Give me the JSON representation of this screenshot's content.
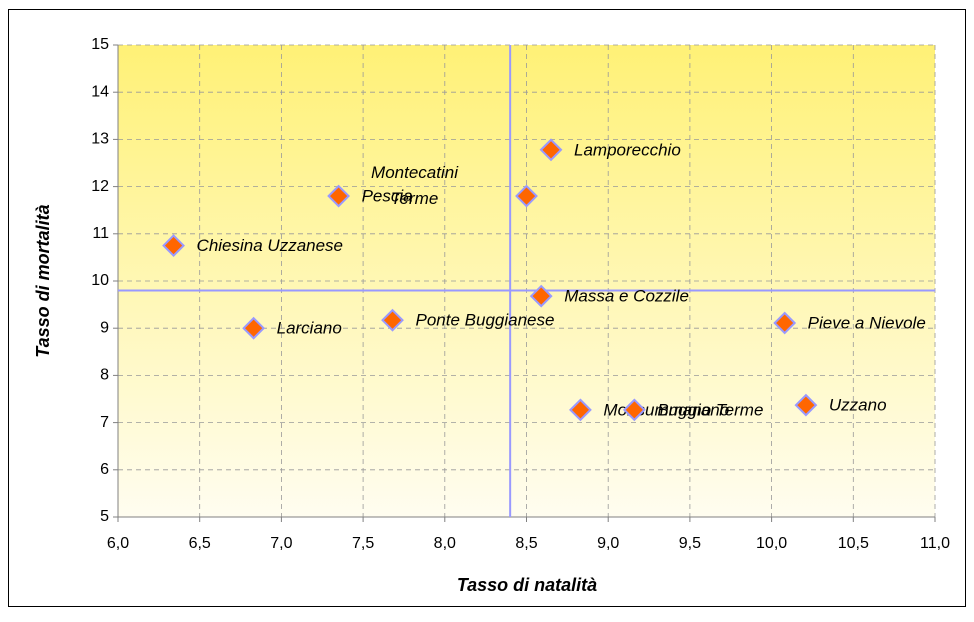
{
  "chart_data": {
    "type": "scatter",
    "x_label": "Tasso di natalità",
    "y_label": "Tasso di mortalità",
    "labels": [
      "Lamporecchio",
      "Pescia",
      "Montecatini Terme",
      "Chiesina Uzzanese",
      "Massa e Cozzile",
      "Larciano",
      "Ponte Buggianese",
      "Pieve a Nievole",
      "Monsummano Terme",
      "Buggiano",
      "Uzzano"
    ],
    "x": [
      8.65,
      7.35,
      8.5,
      6.34,
      8.59,
      6.83,
      7.68,
      10.08,
      8.83,
      9.16,
      10.21
    ],
    "y": [
      12.78,
      11.8,
      11.8,
      10.75,
      9.68,
      9.0,
      9.17,
      9.11,
      7.27,
      7.27,
      7.37
    ],
    "color": "#ff6600",
    "reference_lines": {
      "x": 8.4,
      "y": 9.8
    },
    "xlim": [
      6,
      11
    ],
    "xticks": [
      {
        "value": 6,
        "label": "6,0"
      },
      {
        "value": 6.5,
        "label": "6,5"
      },
      {
        "value": 7,
        "label": "7,0"
      },
      {
        "value": 7.5,
        "label": "7,5"
      },
      {
        "value": 8,
        "label": "8,0"
      },
      {
        "value": 8.5,
        "label": "8,5"
      },
      {
        "value": 9,
        "label": "9,0"
      },
      {
        "value": 9.5,
        "label": "9,5"
      },
      {
        "value": 10,
        "label": "10,0"
      },
      {
        "value": 10.5,
        "label": "10,5"
      },
      {
        "value": 11,
        "label": "11,0"
      }
    ],
    "ylim": [
      5,
      15
    ],
    "yticks": [
      5,
      6,
      7,
      8,
      9,
      10,
      11,
      12,
      13,
      14,
      15
    ],
    "grid": true
  }
}
